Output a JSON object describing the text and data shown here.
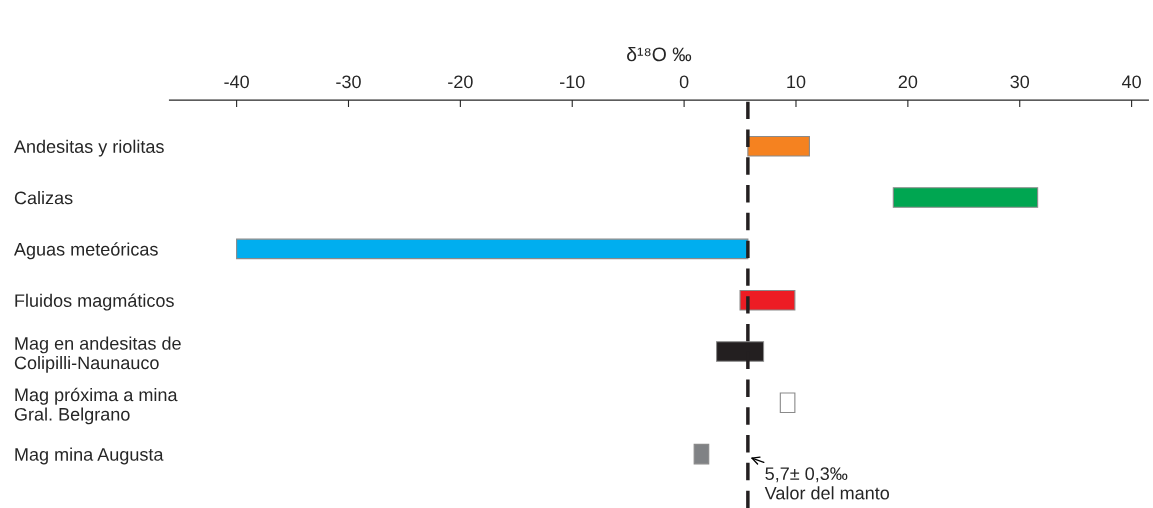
{
  "chart_data": {
    "type": "bar",
    "orientation": "horizontal",
    "xlabel": "δ¹⁸O ‰",
    "categories": [
      "Andesitas y riolitas",
      "Calizas",
      "Aguas meteóricas",
      "Fluidos magmáticos",
      "Mag en andesitas de\nColipilli-Naunauco",
      "Mag próxima a mina\nGral. Belgrano",
      "Mag mina Augusta"
    ],
    "base": [
      5.7,
      18.7,
      -40,
      5.0,
      2.9,
      8.6,
      0.9
    ],
    "values": [
      5.5,
      12.9,
      45.7,
      4.9,
      4.2,
      1.3,
      1.3
    ],
    "colors": [
      "#f58220",
      "#00a651",
      "#00aeef",
      "#ed1c24",
      "#231f20",
      "#ffffff",
      "#808285"
    ],
    "xlim": [
      -46,
      41.5
    ],
    "xticks": [
      -40,
      -30,
      -20,
      -10,
      0,
      10,
      20,
      30,
      40
    ],
    "ref_lines": [
      {
        "axis": "x",
        "value": 5.7,
        "label": "5,7± 0,3‰\nValor del manto",
        "color": "#231f20",
        "line_style": "dashed"
      }
    ],
    "grid": false,
    "legend": false
  }
}
